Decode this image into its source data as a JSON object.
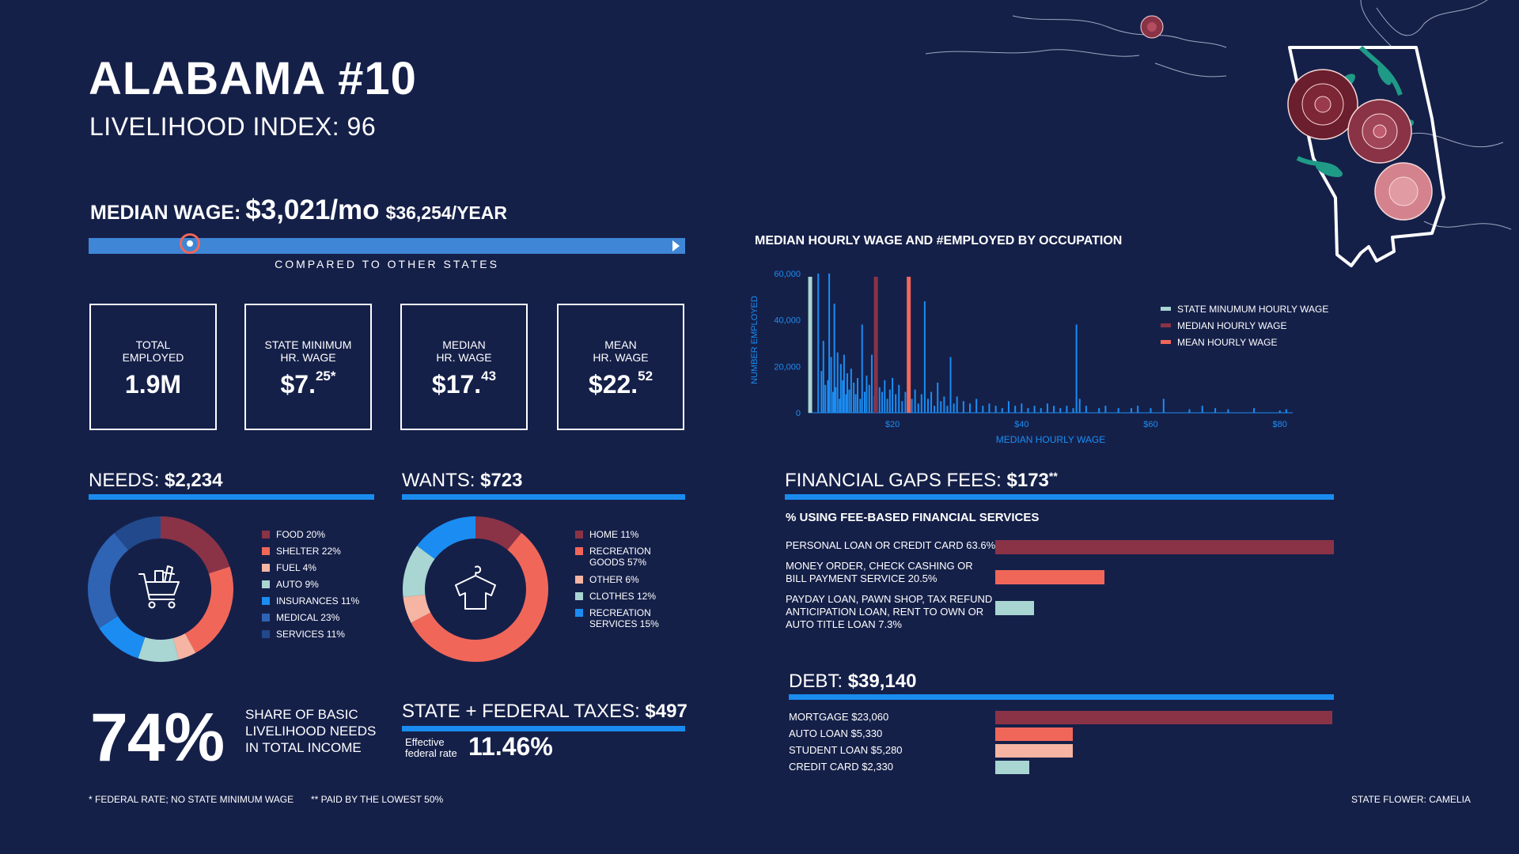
{
  "header": {
    "title": "ALABAMA #10",
    "subtitle": "LIVELIHOOD INDEX: 96"
  },
  "median_wage": {
    "label": "MEDIAN WAGE:",
    "monthly": "$3,021/mo",
    "yearly": "$36,254/YEAR",
    "compare_label": "COMPARED TO OTHER STATES",
    "rank_fraction": 0.17
  },
  "stat_boxes": [
    {
      "label1": "TOTAL",
      "label2": "EMPLOYED",
      "value": "1.9M",
      "sup": ""
    },
    {
      "label1": "STATE MINIMUM",
      "label2": "HR. WAGE",
      "value": "$7.",
      "sup": "25*"
    },
    {
      "label1": "MEDIAN",
      "label2": "HR. WAGE",
      "value": "$17.",
      "sup": "43"
    },
    {
      "label1": "MEAN",
      "label2": "HR. WAGE",
      "value": "$22.",
      "sup": "52"
    }
  ],
  "needs": {
    "label": "NEEDS:",
    "value": "$2,234",
    "legend": [
      {
        "text": "FOOD 20%",
        "color": "#8a3346"
      },
      {
        "text": "SHELTER 22%",
        "color": "#f0675a"
      },
      {
        "text": "FUEL 4%",
        "color": "#f5b5a2"
      },
      {
        "text": "AUTO 9%",
        "color": "#a9d5d2"
      },
      {
        "text": "INSURANCES 11%",
        "color": "#1b8df2"
      },
      {
        "text": "MEDICAL 23%",
        "color": "#2f63b3"
      },
      {
        "text": "SERVICES 11%",
        "color": "#21498c"
      }
    ]
  },
  "wants": {
    "label": "WANTS:",
    "value": "$723",
    "legend": [
      {
        "text": "HOME 11%",
        "color": "#8a3346"
      },
      {
        "text": "RECREATION",
        "text2": "GOODS 57%",
        "color": "#f0675a"
      },
      {
        "text": "OTHER 6%",
        "color": "#f5b5a2"
      },
      {
        "text": "CLOTHES 12%",
        "color": "#a9d5d2"
      },
      {
        "text": "RECREATION",
        "text2": "SERVICES 15%",
        "color": "#1b8df2"
      }
    ]
  },
  "share": {
    "value": "74%",
    "line1": "SHARE OF BASIC",
    "line2": "LIVELIHOOD  NEEDS",
    "line3": "IN TOTAL INCOME"
  },
  "taxes": {
    "label": "STATE + FEDERAL TAXES:",
    "value": "$497",
    "rate_label1": "Effective",
    "rate_label2": "federal rate",
    "rate": "11.46%"
  },
  "footnotes": {
    "left1": "* FEDERAL RATE; NO STATE MINIMUM WAGE",
    "left2": "** PAID BY THE LOWEST 50%",
    "right": "STATE FLOWER: CAMELIA"
  },
  "financial": {
    "label": "FINANCIAL GAPS FEES:",
    "value": "$173",
    "value_sup": "**",
    "subheading": "% USING FEE-BASED FINANCIAL SERVICES",
    "services": [
      {
        "lines": [
          "PERSONAL LOAN OR CREDIT CARD 63.6%"
        ],
        "pct": 63.6,
        "color": "#8a3346"
      },
      {
        "lines": [
          "MONEY ORDER, CHECK CASHING OR",
          "BILL PAYMENT SERVICE 20.5%"
        ],
        "pct": 20.5,
        "color": "#f0675a"
      },
      {
        "lines": [
          "PAYDAY LOAN, PAWN SHOP, TAX REFUND",
          "ANTICIPATION LOAN, RENT TO OWN OR",
          "AUTO TITLE LOAN 7.3%"
        ],
        "pct": 7.3,
        "color": "#a9d5d2"
      }
    ]
  },
  "debt": {
    "label": "DEBT:",
    "value": "$39,140",
    "items": [
      {
        "text": "MORTGAGE $23,060",
        "amount": 23060,
        "color": "#8a3346"
      },
      {
        "text": "AUTO LOAN $5,330",
        "amount": 5330,
        "color": "#f0675a"
      },
      {
        "text": "STUDENT LOAN $5,280",
        "amount": 5280,
        "color": "#f5b5a2"
      },
      {
        "text": "CREDIT CARD $2,330",
        "amount": 2330,
        "color": "#a9d5d2"
      }
    ]
  },
  "chart_data": [
    {
      "type": "bar",
      "title": "MEDIAN HOURLY WAGE AND #EMPLOYED BY OCCUPATION",
      "xlabel": "MEDIAN HOURLY WAGE",
      "ylabel": "NUMBER EMPLOYED",
      "x_ticks": [
        "$20",
        "$40",
        "$60",
        "$80"
      ],
      "y_ticks": [
        "0",
        "20,000",
        "40,000",
        "60,000"
      ],
      "xlim": [
        7,
        82
      ],
      "ylim": [
        0,
        62000
      ],
      "legend": [
        {
          "text": "STATE MINUMUM HOURLY WAGE",
          "color": "#a9d5d2"
        },
        {
          "text": "MEDIAN HOURLY WAGE",
          "color": "#8a3346"
        },
        {
          "text": "MEAN HOURLY WAGE",
          "color": "#f0675a"
        }
      ],
      "reference_lines": [
        {
          "name": "STATE MINUMUM HOURLY WAGE",
          "x": 7.25,
          "color": "#a9d5d2"
        },
        {
          "name": "MEDIAN HOURLY WAGE",
          "x": 17.43,
          "color": "#8a3346"
        },
        {
          "name": "MEAN HOURLY WAGE",
          "x": 22.52,
          "color": "#f0675a"
        }
      ],
      "x": [
        8.5,
        9,
        9.3,
        9.6,
        10,
        10.2,
        10.5,
        10.8,
        11,
        11.2,
        11.5,
        11.8,
        12,
        12.3,
        12.5,
        12.8,
        13,
        13.3,
        13.6,
        14,
        14.3,
        14.6,
        15,
        15.3,
        15.7,
        16,
        16.4,
        16.8,
        17.2,
        17.6,
        18,
        18.4,
        18.8,
        19.2,
        19.6,
        20,
        20.5,
        21,
        21.5,
        22,
        22.5,
        23,
        23.5,
        24,
        24.5,
        25,
        25.5,
        26,
        26.5,
        27,
        27.5,
        28,
        28.5,
        29,
        29.5,
        30,
        31,
        32,
        33,
        34,
        35,
        36,
        37,
        38,
        39,
        40,
        41,
        42,
        43,
        44,
        45,
        46,
        47,
        48,
        48.5,
        49,
        50,
        52,
        53,
        55,
        57,
        58,
        60,
        62,
        66,
        68,
        70,
        72,
        76,
        80,
        81
      ],
      "values": [
        60000,
        18000,
        31000,
        12000,
        14000,
        60000,
        24000,
        9000,
        47000,
        11000,
        26000,
        6000,
        21000,
        14000,
        25000,
        8000,
        17000,
        10000,
        19000,
        13000,
        8000,
        15000,
        6000,
        38000,
        9000,
        16000,
        12000,
        25000,
        7000,
        18000,
        11000,
        9000,
        14000,
        6000,
        10000,
        15000,
        8000,
        12000,
        5000,
        9000,
        14000,
        6000,
        10000,
        4000,
        8000,
        48000,
        6000,
        9000,
        3000,
        13000,
        5000,
        7000,
        3000,
        24000,
        4000,
        7000,
        5000,
        4000,
        6000,
        3000,
        4000,
        3000,
        2000,
        5000,
        3000,
        4000,
        2000,
        3000,
        2000,
        4000,
        3000,
        2000,
        3000,
        2000,
        38000,
        6000,
        3000,
        2000,
        3000,
        2000,
        2000,
        3000,
        2000,
        6000,
        1500,
        3000,
        2000,
        1500,
        2000,
        1000,
        1500
      ]
    },
    {
      "type": "pie",
      "title": "NEEDS: $2,234",
      "categories": [
        "FOOD",
        "SHELTER",
        "FUEL",
        "AUTO",
        "INSURANCES",
        "MEDICAL",
        "SERVICES"
      ],
      "values": [
        20,
        22,
        4,
        9,
        11,
        23,
        11
      ],
      "colors": [
        "#8a3346",
        "#f0675a",
        "#f5b5a2",
        "#a9d5d2",
        "#1b8df2",
        "#2f63b3",
        "#21498c"
      ]
    },
    {
      "type": "pie",
      "title": "WANTS: $723",
      "categories": [
        "HOME",
        "RECREATION GOODS",
        "OTHER",
        "CLOTHES",
        "RECREATION SERVICES"
      ],
      "values": [
        11,
        57,
        6,
        12,
        15
      ],
      "colors": [
        "#8a3346",
        "#f0675a",
        "#f5b5a2",
        "#a9d5d2",
        "#1b8df2"
      ]
    },
    {
      "type": "bar",
      "title": "% USING FEE-BASED FINANCIAL SERVICES",
      "categories": [
        "PERSONAL LOAN OR CREDIT CARD",
        "MONEY ORDER, CHECK CASHING OR BILL PAYMENT SERVICE",
        "PAYDAY LOAN, PAWN SHOP, TAX REFUND ANTICIPATION LOAN, RENT TO OWN OR AUTO TITLE LOAN"
      ],
      "values": [
        63.6,
        20.5,
        7.3
      ]
    },
    {
      "type": "bar",
      "title": "DEBT: $39,140",
      "categories": [
        "MORTGAGE",
        "AUTO LOAN",
        "STUDENT LOAN",
        "CREDIT CARD"
      ],
      "values": [
        23060,
        5330,
        5280,
        2330
      ]
    }
  ]
}
